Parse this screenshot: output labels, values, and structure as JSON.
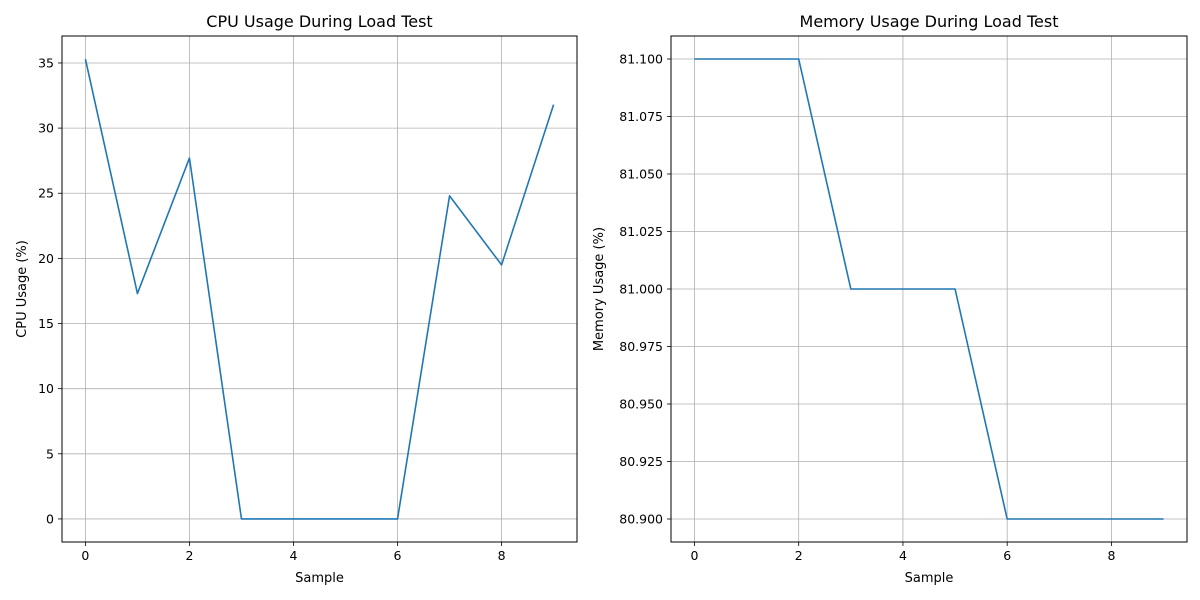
{
  "chart_data": [
    {
      "type": "line",
      "title": "CPU Usage During Load Test",
      "xlabel": "Sample",
      "ylabel": "CPU Usage (%)",
      "grid": true,
      "x": [
        0,
        1,
        2,
        3,
        4,
        5,
        6,
        7,
        8,
        9
      ],
      "series": [
        {
          "values": [
            35.3,
            17.3,
            27.7,
            0,
            0,
            0,
            0,
            24.8,
            19.5,
            31.8
          ],
          "color": "#1f77b4"
        }
      ],
      "xlim": [
        -0.45,
        9.45
      ],
      "ylim": [
        -1.77,
        37.07
      ],
      "xticks": [
        0,
        2,
        4,
        6,
        8
      ],
      "xtick_labels": [
        "0",
        "2",
        "4",
        "6",
        "8"
      ],
      "yticks": [
        0,
        5,
        10,
        15,
        20,
        25,
        30,
        35
      ],
      "ytick_labels": [
        "0",
        "5",
        "10",
        "15",
        "20",
        "25",
        "30",
        "35"
      ]
    },
    {
      "type": "line",
      "title": "Memory Usage During Load Test",
      "xlabel": "Sample",
      "ylabel": "Memory Usage (%)",
      "grid": true,
      "x": [
        0,
        1,
        2,
        3,
        4,
        5,
        6,
        7,
        8,
        9
      ],
      "series": [
        {
          "values": [
            81.1,
            81.1,
            81.1,
            81.0,
            81.0,
            81.0,
            80.9,
            80.9,
            80.9,
            80.9
          ],
          "color": "#1f77b4"
        }
      ],
      "xlim": [
        -0.45,
        9.45
      ],
      "ylim": [
        80.89,
        81.11
      ],
      "xticks": [
        0,
        2,
        4,
        6,
        8
      ],
      "xtick_labels": [
        "0",
        "2",
        "4",
        "6",
        "8"
      ],
      "yticks": [
        80.9,
        80.925,
        80.95,
        80.975,
        81.0,
        81.025,
        81.05,
        81.075,
        81.1
      ],
      "ytick_labels": [
        "80.900",
        "80.925",
        "80.950",
        "80.975",
        "81.000",
        "81.025",
        "81.050",
        "81.075",
        "81.100"
      ]
    }
  ]
}
